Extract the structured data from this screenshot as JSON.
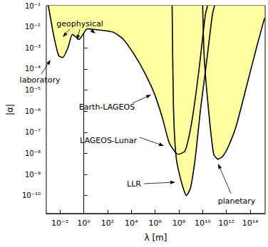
{
  "chart_data": {
    "type": "area",
    "xlabel": "λ [m]",
    "ylabel": "|α|",
    "log": true,
    "grid": false,
    "xlim": [
      0.0007,
      1800000000000000.0
    ],
    "ylim": [
      1.4e-11,
      0.1
    ],
    "xticks": [
      {
        "value": 0.01,
        "label": "10⁻²"
      },
      {
        "value": 1,
        "label": "10⁰"
      },
      {
        "value": 100,
        "label": "10²"
      },
      {
        "value": 10000,
        "label": "10⁴"
      },
      {
        "value": 1000000,
        "label": "10⁶"
      },
      {
        "value": 100000000,
        "label": "10⁸"
      },
      {
        "value": 10000000000,
        "label": "10¹⁰"
      },
      {
        "value": 1000000000000,
        "label": "10¹²"
      },
      {
        "value": 100000000000000,
        "label": "10¹⁴"
      }
    ],
    "yticks": [
      {
        "value": 1e-10,
        "label": "10⁻¹⁰"
      },
      {
        "value": 1e-09,
        "label": "10⁻⁹"
      },
      {
        "value": 1e-08,
        "label": "10⁻⁸"
      },
      {
        "value": 1e-07,
        "label": "10⁻⁷"
      },
      {
        "value": 1e-06,
        "label": "10⁻⁶"
      },
      {
        "value": 1e-05,
        "label": "10⁻⁵"
      },
      {
        "value": 0.0001,
        "label": "10⁻⁴"
      },
      {
        "value": 0.001,
        "label": "10⁻³"
      },
      {
        "value": 0.01,
        "label": "10⁻²"
      },
      {
        "value": 0.1,
        "label": "10⁻¹"
      }
    ],
    "series": [
      {
        "color": "#ffffa0",
        "x": [
          0.00105,
          0.003,
          0.0078,
          0.017,
          0.049,
          0.11,
          0.4,
          2,
          21,
          300,
          2200,
          16000,
          120000,
          850000,
          4200000,
          16000000,
          87000000,
          330000000,
          1200000000,
          4700000000,
          17000000000,
          26000000000
        ],
        "values": [
          0.1,
          0.0037,
          0.00042,
          0.00035,
          0.0011,
          0.0044,
          0.0025,
          0.008,
          0.007,
          0.0055,
          0.0025,
          0.00052,
          7.4e-05,
          7e-06,
          4.6e-07,
          3e-08,
          9e-09,
          1.3e-08,
          3e-07,
          7.4e-05,
          0.039,
          0.1
        ]
      },
      {
        "color": "#ffffa0",
        "x": [
          27000000,
          35000000,
          59000000,
          170000000,
          430000000,
          950000000,
          2400000000,
          6900000000,
          20000000000,
          66000000000,
          100000000000
        ],
        "values": [
          0.1,
          1.5e-06,
          6.3e-09,
          4e-10,
          1e-10,
          2.3e-10,
          6.3e-09,
          1.5e-06,
          0.00016,
          0.039,
          0.1
        ]
      },
      {
        "color": "#ffffa0",
        "x": [
          10000000000,
          13500000000,
          34000000000,
          85000000000,
          190000000000,
          480000000000,
          1400000000000,
          6800000000000,
          49000000000000,
          350000000000000,
          1600000000000000
        ],
        "values": [
          0.1,
          0.00035,
          6.8e-07,
          9e-09,
          5.3e-09,
          7.2e-09,
          2e-08,
          2.1e-07,
          1.5e-05,
          0.0011,
          0.026
        ]
      }
    ],
    "annotations": [
      "laboratory",
      "geophysical",
      "Earth-LAGEOS",
      "LAGEOS-Lunar",
      "LLR",
      "planetary"
    ]
  }
}
